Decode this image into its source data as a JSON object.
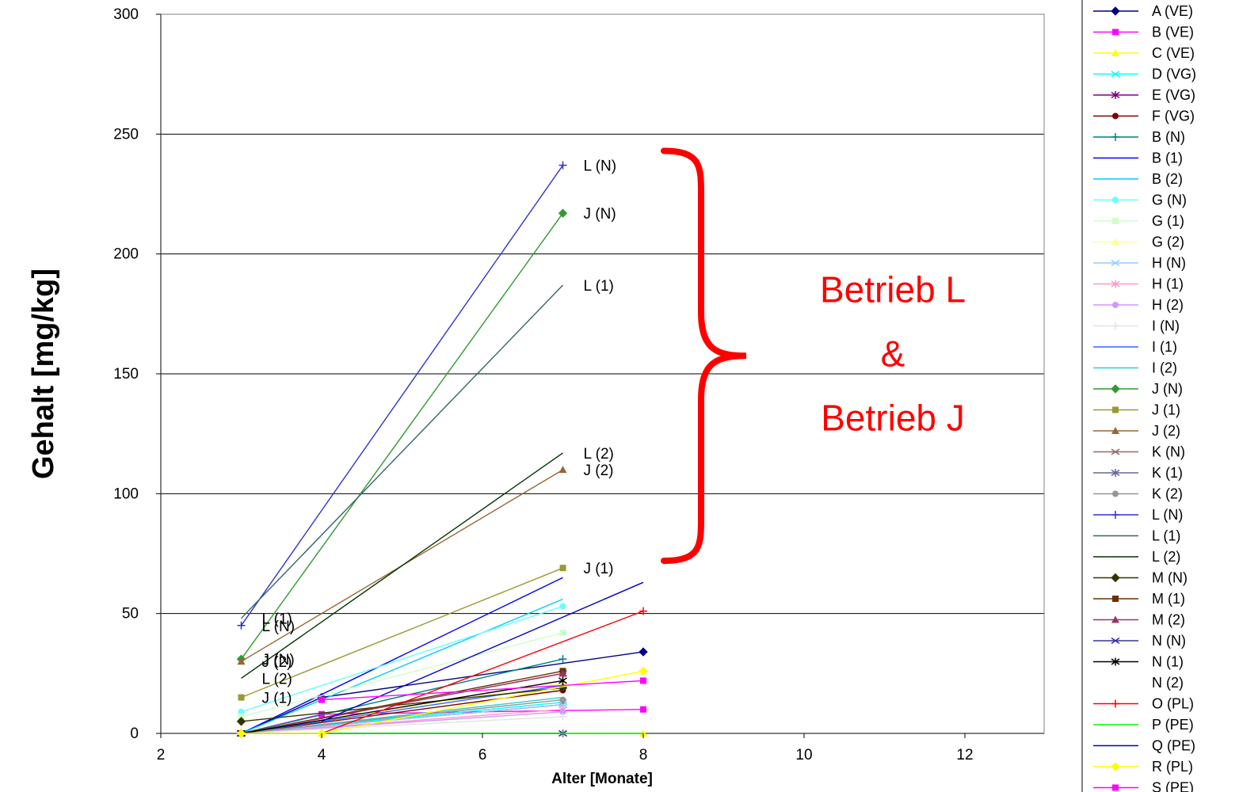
{
  "chart_data": {
    "type": "line",
    "xlabel": "Alter [Monate]",
    "ylabel": "Gehalt [mg/kg]",
    "xlim": [
      2,
      13
    ],
    "ylim": [
      0,
      300
    ],
    "xticks": [
      2,
      4,
      6,
      8,
      10,
      12
    ],
    "yticks": [
      0,
      50,
      100,
      150,
      200,
      250,
      300
    ],
    "gridlines": "horizontal major",
    "legend_position": "right",
    "series": [
      {
        "name": "A (VE)",
        "color": "#000080",
        "marker": "diamond",
        "points": [
          [
            3,
            0
          ],
          [
            4,
            15
          ],
          [
            8,
            34
          ]
        ]
      },
      {
        "name": "B (VE)",
        "color": "#ff00ff",
        "marker": "square",
        "points": [
          [
            3,
            0
          ],
          [
            4,
            8
          ],
          [
            8,
            10
          ]
        ]
      },
      {
        "name": "C (VE)",
        "color": "#ffff00",
        "marker": "triangle",
        "points": [
          [
            3,
            0
          ],
          [
            4,
            0
          ],
          [
            8,
            0
          ]
        ]
      },
      {
        "name": "D (VG)",
        "color": "#00ffff",
        "marker": "x",
        "points": [
          [
            3,
            0
          ],
          [
            7,
            13
          ]
        ]
      },
      {
        "name": "E (VG)",
        "color": "#800080",
        "marker": "star",
        "points": [
          [
            3,
            0
          ],
          [
            7,
            12
          ]
        ]
      },
      {
        "name": "F (VG)",
        "color": "#800000",
        "marker": "circle",
        "points": [
          [
            3,
            0
          ],
          [
            7,
            18
          ]
        ]
      },
      {
        "name": "B (N)",
        "color": "#008080",
        "marker": "plus",
        "points": [
          [
            3,
            0
          ],
          [
            7,
            31
          ]
        ]
      },
      {
        "name": "B (1)",
        "color": "#0000ff",
        "marker": "none",
        "points": [
          [
            3,
            0
          ],
          [
            7,
            65
          ]
        ]
      },
      {
        "name": "B (2)",
        "color": "#00ccff",
        "marker": "none",
        "points": [
          [
            3,
            0
          ],
          [
            7,
            56
          ]
        ]
      },
      {
        "name": "G (N)",
        "color": "#66ffff",
        "marker": "circle",
        "points": [
          [
            3,
            9
          ],
          [
            7,
            53
          ]
        ]
      },
      {
        "name": "G (1)",
        "color": "#ccffcc",
        "marker": "square",
        "points": [
          [
            3,
            7
          ],
          [
            7,
            42
          ]
        ]
      },
      {
        "name": "G (2)",
        "color": "#ffff99",
        "marker": "triangle",
        "points": [
          [
            3,
            0
          ],
          [
            7,
            21
          ]
        ]
      },
      {
        "name": "H (N)",
        "color": "#99ccff",
        "marker": "x",
        "points": [
          [
            3,
            0
          ],
          [
            7,
            12
          ]
        ]
      },
      {
        "name": "H (1)",
        "color": "#ff99cc",
        "marker": "star",
        "points": [
          [
            3,
            0
          ],
          [
            7,
            10
          ]
        ]
      },
      {
        "name": "H (2)",
        "color": "#cc99ff",
        "marker": "circle",
        "points": [
          [
            3,
            0
          ],
          [
            7,
            9
          ]
        ]
      },
      {
        "name": "I (N)",
        "color": "#e3e3e3",
        "marker": "plus",
        "points": [
          [
            3,
            0
          ],
          [
            7,
            7
          ]
        ]
      },
      {
        "name": "I (1)",
        "color": "#3366ff",
        "marker": "none",
        "points": [
          [
            3,
            0
          ],
          [
            7,
            20
          ]
        ]
      },
      {
        "name": "I (2)",
        "color": "#33cccc",
        "marker": "none",
        "points": [
          [
            3,
            0
          ],
          [
            7,
            15
          ]
        ]
      },
      {
        "name": "J (N)",
        "color": "#339933",
        "marker": "diamond",
        "points": [
          [
            3,
            31
          ],
          [
            7,
            217
          ]
        ]
      },
      {
        "name": "J (1)",
        "color": "#999933",
        "marker": "square",
        "points": [
          [
            3,
            15
          ],
          [
            7,
            69
          ]
        ]
      },
      {
        "name": "J (2)",
        "color": "#996633",
        "marker": "triangle",
        "points": [
          [
            3,
            30
          ],
          [
            7,
            110
          ]
        ]
      },
      {
        "name": "K (N)",
        "color": "#996666",
        "marker": "x",
        "points": [
          [
            3,
            0
          ],
          [
            7,
            25
          ]
        ]
      },
      {
        "name": "K (1)",
        "color": "#666699",
        "marker": "star",
        "points": [
          [
            3,
            0
          ],
          [
            7,
            0
          ]
        ]
      },
      {
        "name": "K (2)",
        "color": "#969696",
        "marker": "circle",
        "points": [
          [
            3,
            0
          ],
          [
            7,
            14
          ]
        ]
      },
      {
        "name": "L (N)",
        "color": "#3333cc",
        "marker": "plus",
        "points": [
          [
            3,
            45
          ],
          [
            7,
            237
          ]
        ]
      },
      {
        "name": "L (1)",
        "color": "#336666",
        "marker": "none",
        "points": [
          [
            3,
            48
          ],
          [
            7,
            187
          ]
        ]
      },
      {
        "name": "L (2)",
        "color": "#003300",
        "marker": "none",
        "points": [
          [
            3,
            23
          ],
          [
            7,
            117
          ]
        ]
      },
      {
        "name": "M (N)",
        "color": "#333300",
        "marker": "diamond",
        "points": [
          [
            3,
            5
          ],
          [
            7,
            19
          ]
        ]
      },
      {
        "name": "M (1)",
        "color": "#663300",
        "marker": "square",
        "points": [
          [
            3,
            0
          ],
          [
            7,
            26
          ]
        ]
      },
      {
        "name": "M (2)",
        "color": "#993366",
        "marker": "triangle",
        "points": [
          [
            3,
            0
          ],
          [
            7,
            25
          ]
        ]
      },
      {
        "name": "N (N)",
        "color": "#333399",
        "marker": "x",
        "points": [
          [
            3,
            0
          ],
          [
            7,
            0
          ]
        ]
      },
      {
        "name": "N (1)",
        "color": "#000000",
        "marker": "star",
        "points": [
          [
            3,
            0
          ],
          [
            7,
            22
          ]
        ]
      },
      {
        "name": "N (2)",
        "color": "#ffffff",
        "marker": "none",
        "points": []
      },
      {
        "name": "O (PL)",
        "color": "#ff0000",
        "marker": "plus",
        "points": [
          [
            4,
            0
          ],
          [
            8,
            51
          ]
        ]
      },
      {
        "name": "P (PE)",
        "color": "#00ff00",
        "marker": "none",
        "points": [
          [
            3,
            0
          ],
          [
            8,
            0
          ]
        ]
      },
      {
        "name": "Q (PE)",
        "color": "#0000cc",
        "marker": "none",
        "points": [
          [
            4,
            5
          ],
          [
            8,
            63
          ]
        ]
      },
      {
        "name": "R (PL)",
        "color": "#ffff00",
        "marker": "diamond",
        "points": [
          [
            3,
            0
          ],
          [
            4,
            0
          ],
          [
            8,
            26
          ]
        ]
      },
      {
        "name": "S (PE)",
        "color": "#ff00ff",
        "marker": "square",
        "points": [
          [
            4,
            14
          ],
          [
            8,
            22
          ]
        ]
      }
    ],
    "data_labels": [
      {
        "text": "L (N)",
        "x": 7,
        "y": 237
      },
      {
        "text": "J (N)",
        "x": 7,
        "y": 217
      },
      {
        "text": "L (1)",
        "x": 7,
        "y": 187
      },
      {
        "text": "L (2)",
        "x": 7,
        "y": 117
      },
      {
        "text": "J (2)",
        "x": 7,
        "y": 110
      },
      {
        "text": "J (1)",
        "x": 7,
        "y": 69
      },
      {
        "text": "L (1)",
        "x": 3,
        "y": 48
      },
      {
        "text": "L (N)",
        "x": 3,
        "y": 45
      },
      {
        "text": "J (N)",
        "x": 3,
        "y": 31
      },
      {
        "text": "J (2)",
        "x": 3,
        "y": 30
      },
      {
        "text": "L (2)",
        "x": 3,
        "y": 23
      },
      {
        "text": "J (1)",
        "x": 3,
        "y": 15
      }
    ],
    "annotation": {
      "lines": [
        "Betrieb L",
        "&",
        "Betrieb J"
      ],
      "color": "#ff0000",
      "brace_from_y": 72,
      "brace_to_y": 243
    }
  }
}
